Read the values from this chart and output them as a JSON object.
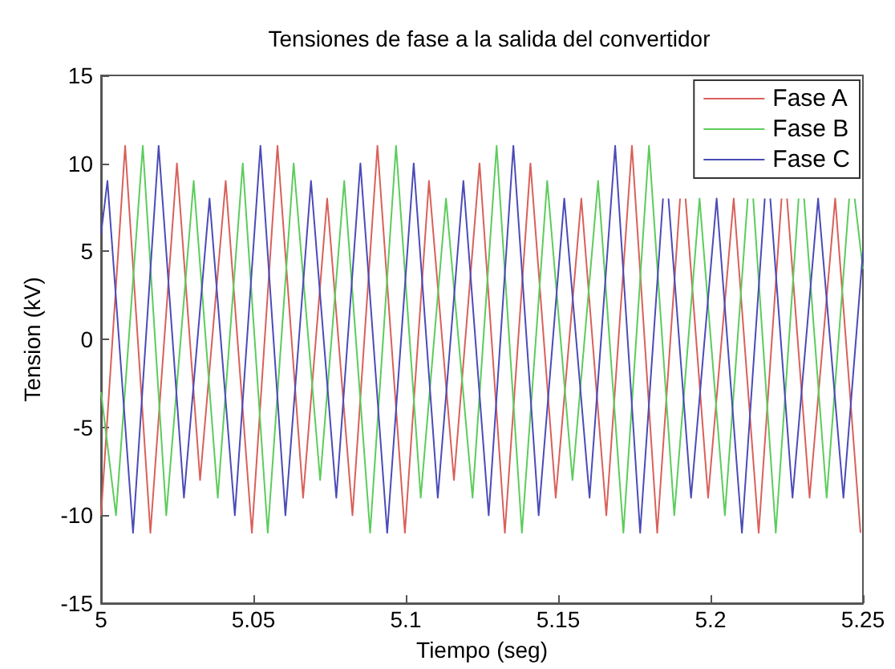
{
  "chart_data": {
    "type": "line",
    "title": "Tensiones de fase a la salida del convertidor",
    "xlabel": "Tiempo (seg)",
    "ylabel": "Tension (kV)",
    "xlim": [
      5,
      5.25
    ],
    "xticks": [
      5,
      5.05,
      5.1,
      5.15,
      5.2,
      5.25
    ],
    "ylim": [
      -15,
      15
    ],
    "yticks": [
      -15,
      -10,
      -5,
      0,
      5,
      10,
      15
    ],
    "grid": false,
    "legend": "top right",
    "marker": "none",
    "line_style": "solid",
    "series": [
      {
        "name": "Fase A",
        "color": "#d9605a",
        "x": [
          5.0,
          5.0079,
          5.0162,
          5.0249,
          5.0325,
          5.0409,
          5.0495,
          5.0579,
          5.0663,
          5.0742,
          5.0825,
          5.0907,
          5.0997,
          5.1076,
          5.1158,
          5.1242,
          5.1325,
          5.1409,
          5.1492,
          5.1576,
          5.1658,
          5.1742,
          5.1825,
          5.19,
          5.1909,
          5.1918,
          5.1992,
          5.2076,
          5.2158,
          5.2233,
          5.2242,
          5.2251,
          5.2325,
          5.2409,
          5.2492
        ],
        "values": [
          -10,
          11,
          -11,
          10,
          -8,
          9,
          -11,
          11,
          -9,
          8,
          -10,
          11,
          -11,
          9,
          -8,
          10,
          -11,
          10,
          -9,
          8,
          -10,
          11,
          -11,
          8,
          null,
          8,
          -9,
          8,
          -11,
          8,
          null,
          8,
          -9,
          8,
          -11
        ]
      },
      {
        "name": "Fase B",
        "color": "#5ccc5c",
        "x": [
          5.0,
          5.0049,
          5.0137,
          5.0214,
          5.0304,
          5.0383,
          5.0465,
          5.0547,
          5.0632,
          5.0719,
          5.0798,
          5.0883,
          5.0968,
          5.1049,
          5.1132,
          5.1219,
          5.1298,
          5.1381,
          5.1464,
          5.1547,
          5.1631,
          5.1714,
          5.1798,
          5.1881,
          5.1964,
          5.2047,
          5.2122,
          5.2131,
          5.214,
          5.2214,
          5.2289,
          5.2298,
          5.2307,
          5.2381,
          5.2455,
          5.2464,
          5.2473,
          5.25
        ],
        "values": [
          -3,
          -10,
          11,
          -10,
          9,
          -9,
          10,
          -11,
          10,
          -8,
          9,
          -11,
          11,
          -9,
          8,
          -9,
          11,
          -11,
          9,
          -8,
          9,
          -11,
          11,
          -10,
          8,
          -10,
          8,
          null,
          8,
          -11,
          8,
          null,
          8,
          -9,
          8,
          null,
          8,
          4
        ]
      },
      {
        "name": "Fase C",
        "color": "#4b4bb8",
        "x": [
          5.0,
          5.0021,
          5.0105,
          5.0189,
          5.0272,
          5.0356,
          5.0439,
          5.0523,
          5.0605,
          5.0689,
          5.0772,
          5.0851,
          5.0939,
          5.1026,
          5.1105,
          5.1189,
          5.1272,
          5.1353,
          5.1436,
          5.152,
          5.1603,
          5.1687,
          5.1769,
          5.1844,
          5.1853,
          5.1862,
          5.1936,
          5.202,
          5.2103,
          5.2178,
          5.2187,
          5.2196,
          5.2269,
          5.2353,
          5.2436,
          5.25
        ],
        "values": [
          6,
          9,
          -11,
          11,
          -9,
          8,
          -10,
          11,
          -10,
          9,
          -9,
          10,
          -11,
          10,
          -9,
          9,
          -10,
          11,
          -10,
          8,
          -9,
          11,
          -11,
          8,
          null,
          8,
          -9,
          8,
          -11,
          8,
          null,
          8,
          -9,
          8,
          -9,
          5
        ]
      }
    ]
  }
}
